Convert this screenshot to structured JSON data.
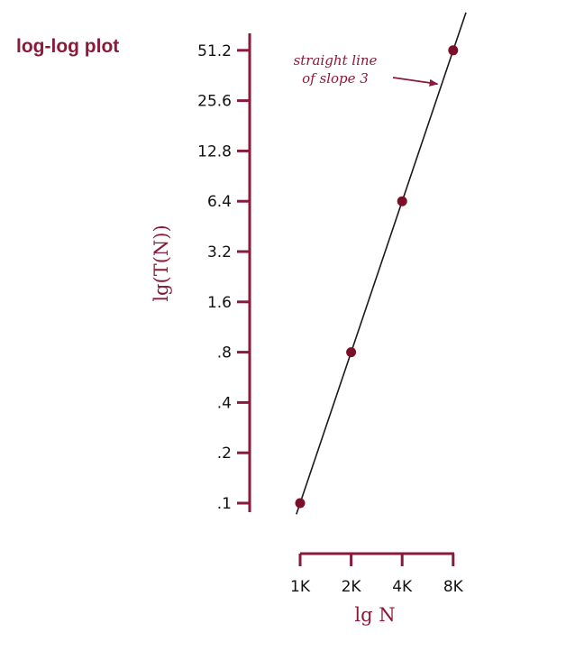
{
  "chart_data": {
    "type": "scatter",
    "title": "log-log plot",
    "xlabel": "lg N",
    "ylabel": "lg(T(N))",
    "x_scale": "log2",
    "y_scale": "log2",
    "x_ticks": [
      {
        "value": 1000,
        "label": "1K"
      },
      {
        "value": 2000,
        "label": "2K"
      },
      {
        "value": 4000,
        "label": "4K"
      },
      {
        "value": 8000,
        "label": "8K"
      }
    ],
    "y_ticks": [
      {
        "value": 0.1,
        "label": ".1"
      },
      {
        "value": 0.2,
        "label": ".2"
      },
      {
        "value": 0.4,
        "label": ".4"
      },
      {
        "value": 0.8,
        "label": ".8"
      },
      {
        "value": 1.6,
        "label": "1.6"
      },
      {
        "value": 3.2,
        "label": "3.2"
      },
      {
        "value": 6.4,
        "label": "6.4"
      },
      {
        "value": 12.8,
        "label": "12.8"
      },
      {
        "value": 25.6,
        "label": "25.6"
      },
      {
        "value": 51.2,
        "label": "51.2"
      }
    ],
    "points": [
      {
        "x": 1000,
        "y": 0.1
      },
      {
        "x": 2000,
        "y": 0.8
      },
      {
        "x": 4000,
        "y": 6.4
      },
      {
        "x": 8000,
        "y": 51.2
      }
    ],
    "fit_line": {
      "slope": 3,
      "from": {
        "x": 950,
        "y": 0.0857
      },
      "to": {
        "x": 9520,
        "y": 86.2
      }
    },
    "annotation": {
      "lines": [
        "straight line",
        "of slope 3"
      ],
      "points_to": {
        "x": 6800,
        "y": 31.4
      }
    },
    "grid": false,
    "legend": "none",
    "colors": {
      "accent": "#8b1a3a",
      "marker": "#7a1028",
      "line": "#1a1a1a",
      "text": "#111111"
    }
  }
}
